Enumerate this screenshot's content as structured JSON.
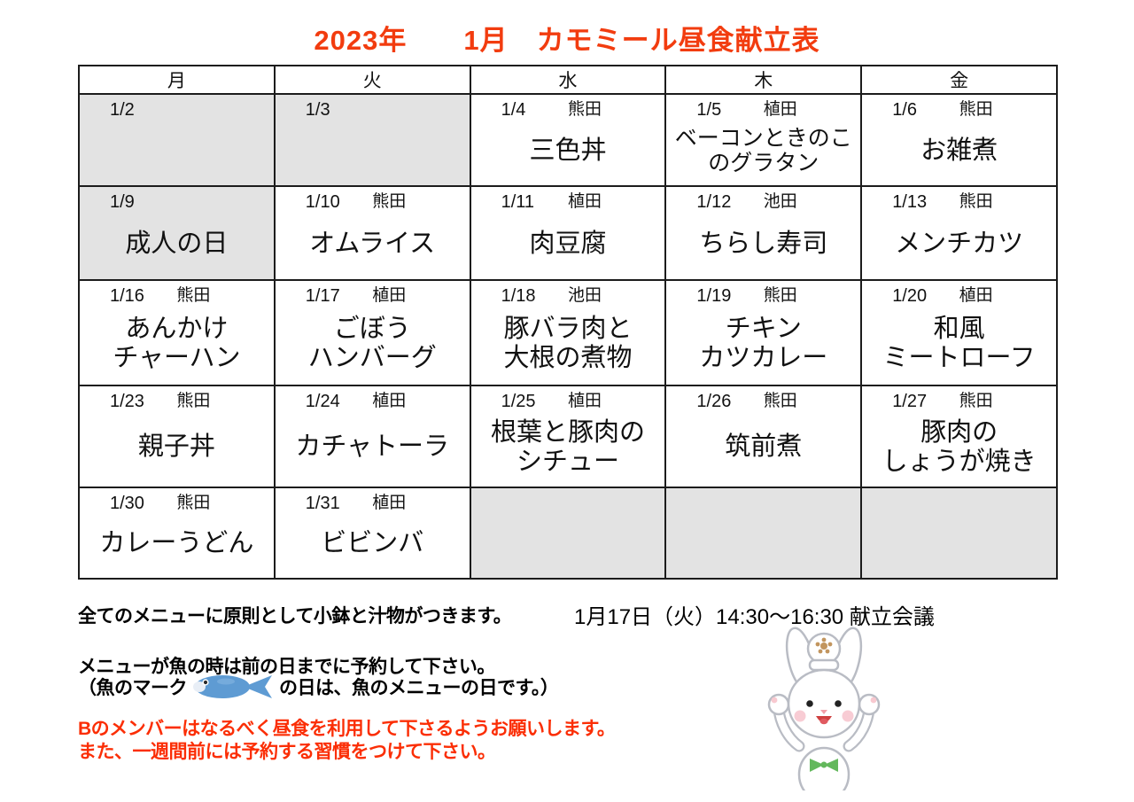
{
  "title": "2023年　　1月　カモミール昼食献立表",
  "calendar": {
    "day_headers": [
      "月",
      "火",
      "水",
      "木",
      "金"
    ],
    "weeks": [
      [
        {
          "date": "1/2",
          "staff": "",
          "menu": "",
          "gray": true
        },
        {
          "date": "1/3",
          "staff": "",
          "menu": "",
          "gray": true
        },
        {
          "date": "1/4",
          "staff": "熊田",
          "menu": "三色丼",
          "gray": false
        },
        {
          "date": "1/5",
          "staff": "植田",
          "menu": "ベーコンときのこ\nのグラタン",
          "gray": false
        },
        {
          "date": "1/6",
          "staff": "熊田",
          "menu": "お雑煮",
          "gray": false
        }
      ],
      [
        {
          "date": "1/9",
          "staff": "",
          "menu": "成人の日",
          "gray": true
        },
        {
          "date": "1/10",
          "staff": "熊田",
          "menu": "オムライス",
          "gray": false
        },
        {
          "date": "1/11",
          "staff": "植田",
          "menu": "肉豆腐",
          "gray": false
        },
        {
          "date": "1/12",
          "staff": "池田",
          "menu": "ちらし寿司",
          "gray": false
        },
        {
          "date": "1/13",
          "staff": "熊田",
          "menu": "メンチカツ",
          "gray": false
        }
      ],
      [
        {
          "date": "1/16",
          "staff": "熊田",
          "menu": "あんかけ\nチャーハン",
          "gray": false
        },
        {
          "date": "1/17",
          "staff": "植田",
          "menu": "ごぼう\nハンバーグ",
          "gray": false
        },
        {
          "date": "1/18",
          "staff": "池田",
          "menu": "豚バラ肉と\n大根の煮物",
          "gray": false
        },
        {
          "date": "1/19",
          "staff": "熊田",
          "menu": "チキン\nカツカレー",
          "gray": false
        },
        {
          "date": "1/20",
          "staff": "植田",
          "menu": "和風\nミートローフ",
          "gray": false
        }
      ],
      [
        {
          "date": "1/23",
          "staff": "熊田",
          "menu": "親子丼",
          "gray": false
        },
        {
          "date": "1/24",
          "staff": "植田",
          "menu": "カチャトーラ",
          "gray": false
        },
        {
          "date": "1/25",
          "staff": "植田",
          "menu": "根葉と豚肉の\nシチュー",
          "gray": false
        },
        {
          "date": "1/26",
          "staff": "熊田",
          "menu": "筑前煮",
          "gray": false
        },
        {
          "date": "1/27",
          "staff": "熊田",
          "menu": "豚肉の\nしょうが焼き",
          "gray": false
        }
      ],
      [
        {
          "date": "1/30",
          "staff": "熊田",
          "menu": "カレーうどん",
          "gray": false
        },
        {
          "date": "1/31",
          "staff": "植田",
          "menu": "ビビンバ",
          "gray": false
        },
        {
          "date": "",
          "staff": "",
          "menu": "",
          "gray": true
        },
        {
          "date": "",
          "staff": "",
          "menu": "",
          "gray": true
        },
        {
          "date": "",
          "staff": "",
          "menu": "",
          "gray": true
        }
      ]
    ]
  },
  "notes": {
    "line1": "全てのメニューに原則として小鉢と汁物がつきます。",
    "meeting": "1月17日（火）14:30～16:30 献立会議",
    "line2": "メニューが魚の時は前の日までに予約して下さい。",
    "fish_prefix": "（魚のマーク",
    "fish_suffix": "の日は、魚のメニューの日です。）",
    "red1": "Bのメンバーはなるべく昼食を利用して下さるようお願いします。",
    "red2": "また、一週間前には予約する習慣をつけて下さい。"
  },
  "icons": {
    "fish": "fish-icon",
    "rabbit": "rabbit-chef-illustration"
  },
  "colors": {
    "title_red": "#f23c0f",
    "notice_red": "#fb2e05",
    "holiday_gray": "#e3e3e3",
    "fish_blue": "#5e9bd3",
    "bow_green": "#63b85c"
  }
}
